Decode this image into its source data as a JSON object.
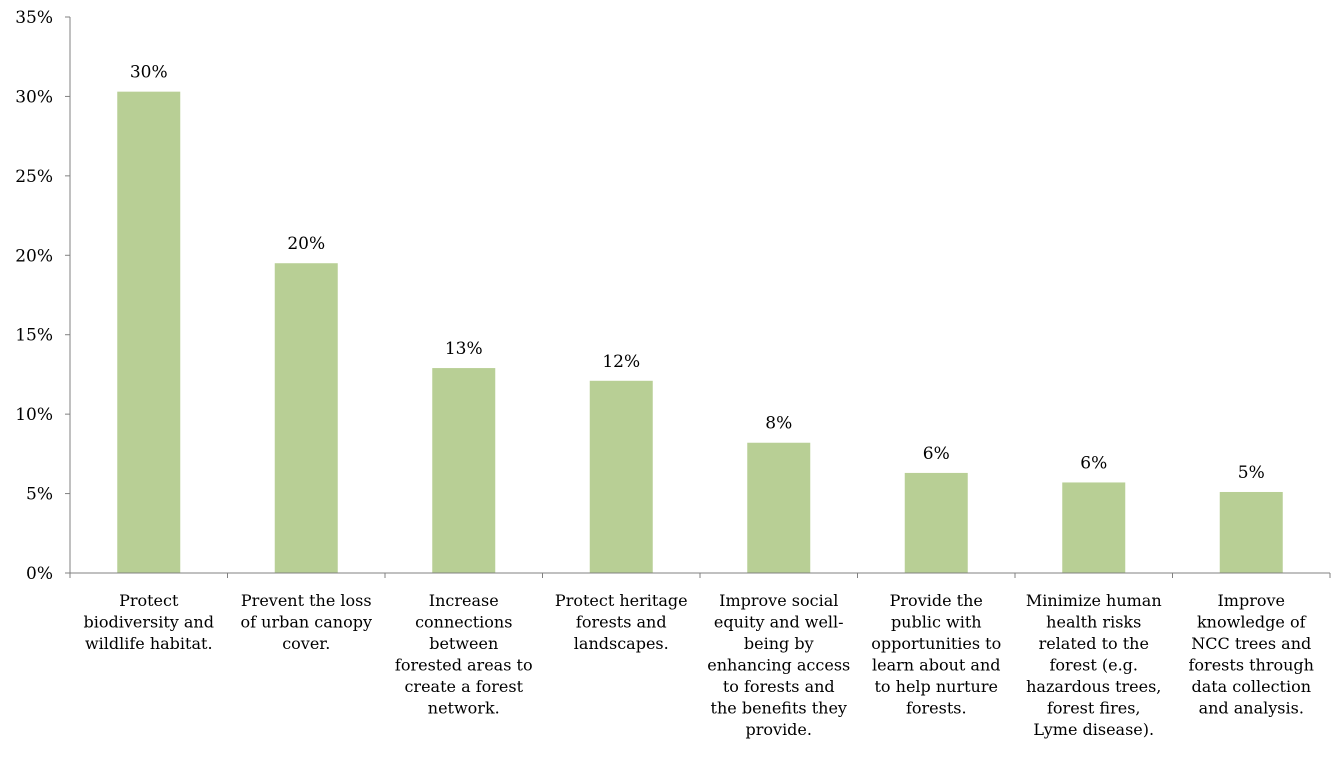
{
  "chart_data": {
    "type": "bar",
    "categories": [
      "Protect biodiversity and wildlife habitat.",
      "Prevent the loss of urban canopy cover.",
      "Increase connections between forested areas to create a forest network.",
      "Protect heritage forests and landscapes.",
      "Improve social equity and well-being by enhancing access to forests and the benefits they provide.",
      "Provide the public with opportunities to learn about and to help nurture forests.",
      "Minimize human health risks related to the forest (e.g. hazardous trees, forest fires, Lyme disease).",
      "Improve knowledge of NCC trees and forests through data collection and analysis."
    ],
    "category_label_lines": [
      [
        "Protect",
        "biodiversity and",
        "wildlife habitat."
      ],
      [
        "Prevent the loss",
        "of urban canopy",
        "cover."
      ],
      [
        "Increase",
        "connections",
        "between",
        "forested areas to",
        "create a forest",
        "network."
      ],
      [
        "Protect heritage",
        "forests and",
        "landscapes."
      ],
      [
        "Improve social",
        "equity and well-",
        "being by",
        "enhancing access",
        "to forests and",
        "the benefits they",
        "provide."
      ],
      [
        "Provide the",
        "public with",
        "opportunities to",
        "learn about and",
        "to help nurture",
        "forests."
      ],
      [
        "Minimize human",
        "health risks",
        "related to the",
        "forest (e.g.",
        "hazardous trees,",
        "forest fires,",
        "Lyme disease)."
      ],
      [
        "Improve",
        "knowledge of",
        "NCC trees and",
        "forests through",
        "data collection",
        "and analysis."
      ]
    ],
    "values": [
      30.3,
      19.5,
      12.9,
      12.1,
      8.2,
      6.3,
      5.7,
      5.1
    ],
    "data_labels": [
      "30%",
      "20%",
      "13%",
      "12%",
      "8%",
      "6%",
      "6%",
      "5%"
    ],
    "yticks": [
      0,
      5,
      10,
      15,
      20,
      25,
      30,
      35
    ],
    "ytick_labels": [
      "0%",
      "5%",
      "10%",
      "15%",
      "20%",
      "25%",
      "30%",
      "35%"
    ],
    "ylim": [
      0,
      35
    ],
    "title": "",
    "xlabel": "",
    "ylabel": "",
    "grid": false,
    "colors": {
      "bar": "#b8cf95",
      "axis": "#808080"
    }
  }
}
